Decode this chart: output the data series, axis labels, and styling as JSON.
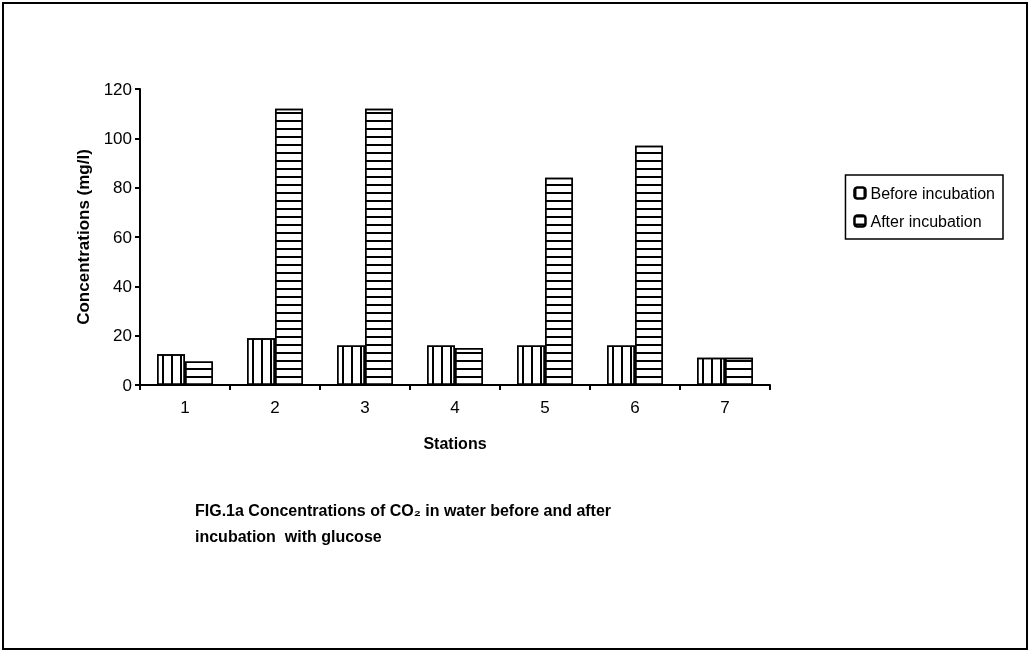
{
  "chart_data": {
    "type": "bar",
    "title": "FIG.1a Concentrations of CO₂ in water before and after\nincubation  with glucose",
    "xlabel": "Stations",
    "ylabel": "Concentrations (mg/l)",
    "categories": [
      "1",
      "2",
      "3",
      "4",
      "5",
      "6",
      "7"
    ],
    "series": [
      {
        "name": "Before incubation",
        "color": "#ffffff",
        "values": [
          12.5,
          19,
          16,
          16,
          16,
          16,
          11
        ]
      },
      {
        "name": "After incubation",
        "color": "#ffffff",
        "values": [
          9.5,
          112,
          112,
          15,
          84,
          97,
          11
        ]
      }
    ],
    "ylim": [
      0,
      120
    ],
    "yticks": [
      0,
      20,
      40,
      60,
      80,
      100,
      120
    ],
    "grid": false,
    "legend": "right"
  }
}
